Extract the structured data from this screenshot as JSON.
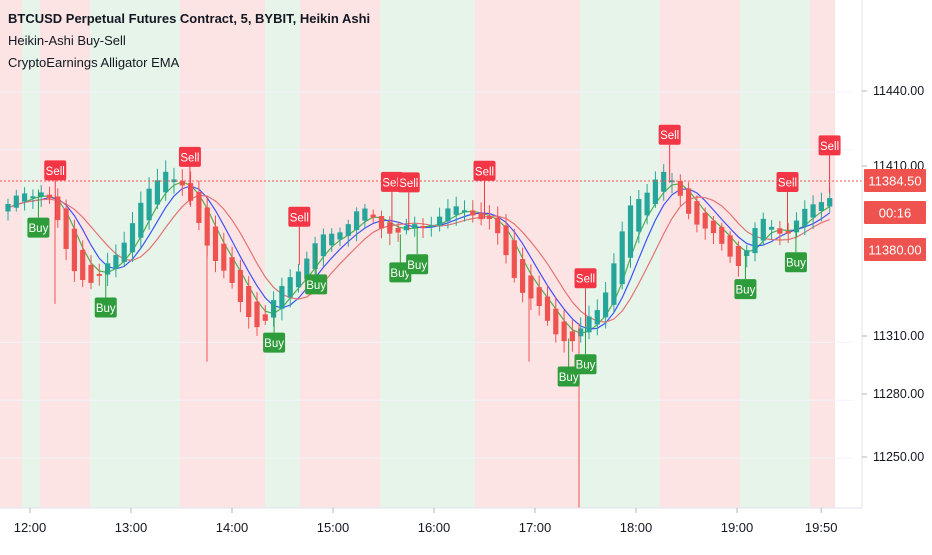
{
  "legend": {
    "symbol_line": "BTCUSD Perpetual Futures Contract, 5, BYBIT, Heikin Ashi",
    "indicator_1": "Heikin-Ashi Buy-Sell",
    "indicator_2": "CryptoEarnings Alligator EMA"
  },
  "price_scale": {
    "ticks": [
      "11440.00",
      "11410.00",
      "11384.50",
      "11380.00",
      "11310.00",
      "11280.00",
      "11250.00"
    ],
    "last_price_label": "11384.50",
    "countdown_label": "00:16",
    "third_label": "11380.00",
    "colors": {
      "last": "#ef5350",
      "up": "#26a69a",
      "down": "#ef5350"
    }
  },
  "chart_data": {
    "type": "candlestick",
    "time_axis": [
      "12:00",
      "13:00",
      "14:00",
      "15:00",
      "16:00",
      "17:00",
      "18:00",
      "19:00",
      "19:50"
    ],
    "y_ticks": [
      11250,
      11280,
      11310,
      11380,
      11410,
      11440
    ],
    "last_price": 11384.5,
    "signals": [
      {
        "label": "Sell",
        "time": "12:15"
      },
      {
        "label": "Buy",
        "time": "12:05"
      },
      {
        "label": "Buy",
        "time": "12:45"
      },
      {
        "label": "Sell",
        "time": "13:35"
      },
      {
        "label": "Sell",
        "time": "14:40"
      },
      {
        "label": "Buy",
        "time": "14:25"
      },
      {
        "label": "Buy",
        "time": "14:50"
      },
      {
        "label": "Sell",
        "time": "15:35"
      },
      {
        "label": "Sell",
        "time": "15:45"
      },
      {
        "label": "Buy",
        "time": "15:40"
      },
      {
        "label": "Buy",
        "time": "15:50"
      },
      {
        "label": "Sell",
        "time": "16:30"
      },
      {
        "label": "Sell",
        "time": "17:30"
      },
      {
        "label": "Buy",
        "time": "17:20"
      },
      {
        "label": "Buy",
        "time": "17:30"
      },
      {
        "label": "Sell",
        "time": "18:20"
      },
      {
        "label": "Sell",
        "time": "19:30"
      },
      {
        "label": "Buy",
        "time": "19:05"
      },
      {
        "label": "Buy",
        "time": "19:35"
      },
      {
        "label": "Sell",
        "time": "19:55"
      }
    ],
    "series": [
      {
        "color": "#4caf50"
      },
      {
        "color": "#3f51f5"
      },
      {
        "color": "#e57373"
      }
    ],
    "background_zones": {
      "bullish": "#e7f4ea",
      "bearish": "#fde4e4"
    }
  }
}
